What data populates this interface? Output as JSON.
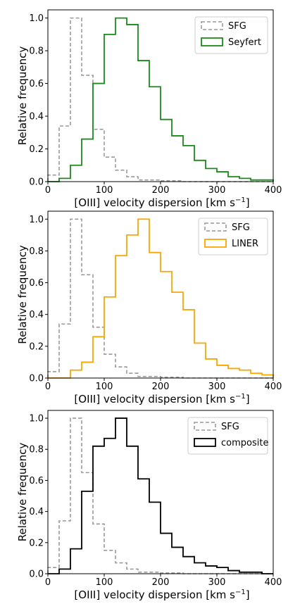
{
  "chart_data": [
    {
      "type": "step-histogram",
      "xlabel": "[OIII] velocity dispersion [km s",
      "xlabel_sup": "−1",
      "xlabel_close": "]",
      "ylabel": "Relative frequency",
      "xlim": [
        0,
        400
      ],
      "ylim": [
        0,
        1.05
      ],
      "xticks": [
        "0",
        "100",
        "200",
        "300",
        "400"
      ],
      "yticks": [
        "0.0",
        "0.2",
        "0.4",
        "0.6",
        "0.8",
        "1.0"
      ],
      "legend_position": "top-right",
      "bin_edges": [
        0,
        20,
        40,
        60,
        80,
        100,
        120,
        140,
        160,
        180,
        200,
        220,
        240,
        260,
        280,
        300,
        320,
        340,
        360,
        380,
        400
      ],
      "series": [
        {
          "name": "SFG",
          "color": "#999999",
          "style": "dashed",
          "values": [
            0.04,
            0.34,
            1.0,
            0.65,
            0.32,
            0.15,
            0.07,
            0.03,
            0.01,
            0.01,
            0.005,
            0.005,
            0.0,
            0.0,
            0.0,
            0.0,
            0.0,
            0.0,
            0.0,
            0.0
          ]
        },
        {
          "name": "Seyfert",
          "color": "#1a8a1a",
          "style": "solid",
          "values": [
            0.0,
            0.02,
            0.1,
            0.26,
            0.6,
            0.9,
            1.0,
            0.96,
            0.74,
            0.58,
            0.38,
            0.28,
            0.22,
            0.13,
            0.08,
            0.06,
            0.03,
            0.02,
            0.01,
            0.01
          ]
        }
      ]
    },
    {
      "type": "step-histogram",
      "xlabel": "[OIII] velocity dispersion [km s",
      "xlabel_sup": "−1",
      "xlabel_close": "]",
      "ylabel": "Relative frequency",
      "xlim": [
        0,
        400
      ],
      "ylim": [
        0,
        1.05
      ],
      "xticks": [
        "0",
        "100",
        "200",
        "300",
        "400"
      ],
      "yticks": [
        "0.0",
        "0.2",
        "0.4",
        "0.6",
        "0.8",
        "1.0"
      ],
      "legend_position": "top-right",
      "bin_edges": [
        0,
        20,
        40,
        60,
        80,
        100,
        120,
        140,
        160,
        180,
        200,
        220,
        240,
        260,
        280,
        300,
        320,
        340,
        360,
        380,
        400
      ],
      "series": [
        {
          "name": "SFG",
          "color": "#999999",
          "style": "dashed",
          "values": [
            0.04,
            0.34,
            1.0,
            0.65,
            0.32,
            0.15,
            0.07,
            0.03,
            0.01,
            0.01,
            0.005,
            0.005,
            0.0,
            0.0,
            0.0,
            0.0,
            0.0,
            0.0,
            0.0,
            0.0
          ]
        },
        {
          "name": "LINER",
          "color": "#ffa500",
          "style": "solid",
          "values": [
            0.0,
            0.0,
            0.05,
            0.1,
            0.26,
            0.51,
            0.77,
            0.9,
            1.0,
            0.79,
            0.67,
            0.54,
            0.43,
            0.22,
            0.12,
            0.08,
            0.06,
            0.05,
            0.03,
            0.02
          ]
        }
      ]
    },
    {
      "type": "step-histogram",
      "xlabel": "[OIII] velocity dispersion [km s",
      "xlabel_sup": "−1",
      "xlabel_close": "]",
      "ylabel": "Relative frequency",
      "xlim": [
        0,
        400
      ],
      "ylim": [
        0,
        1.05
      ],
      "xticks": [
        "0",
        "100",
        "200",
        "300",
        "400"
      ],
      "yticks": [
        "0.0",
        "0.2",
        "0.4",
        "0.6",
        "0.8",
        "1.0"
      ],
      "legend_position": "top-right",
      "bin_edges": [
        0,
        20,
        40,
        60,
        80,
        100,
        120,
        140,
        160,
        180,
        200,
        220,
        240,
        260,
        280,
        300,
        320,
        340,
        360,
        380,
        400
      ],
      "series": [
        {
          "name": "SFG",
          "color": "#999999",
          "style": "dashed",
          "values": [
            0.04,
            0.34,
            1.0,
            0.65,
            0.32,
            0.15,
            0.07,
            0.03,
            0.01,
            0.01,
            0.005,
            0.005,
            0.0,
            0.0,
            0.0,
            0.0,
            0.0,
            0.0,
            0.0,
            0.0
          ]
        },
        {
          "name": "composite",
          "color": "#000000",
          "style": "solid",
          "values": [
            0.0,
            0.03,
            0.16,
            0.53,
            0.82,
            0.87,
            1.0,
            0.82,
            0.61,
            0.46,
            0.26,
            0.17,
            0.11,
            0.07,
            0.05,
            0.04,
            0.02,
            0.01,
            0.01,
            0.0
          ]
        }
      ]
    }
  ]
}
